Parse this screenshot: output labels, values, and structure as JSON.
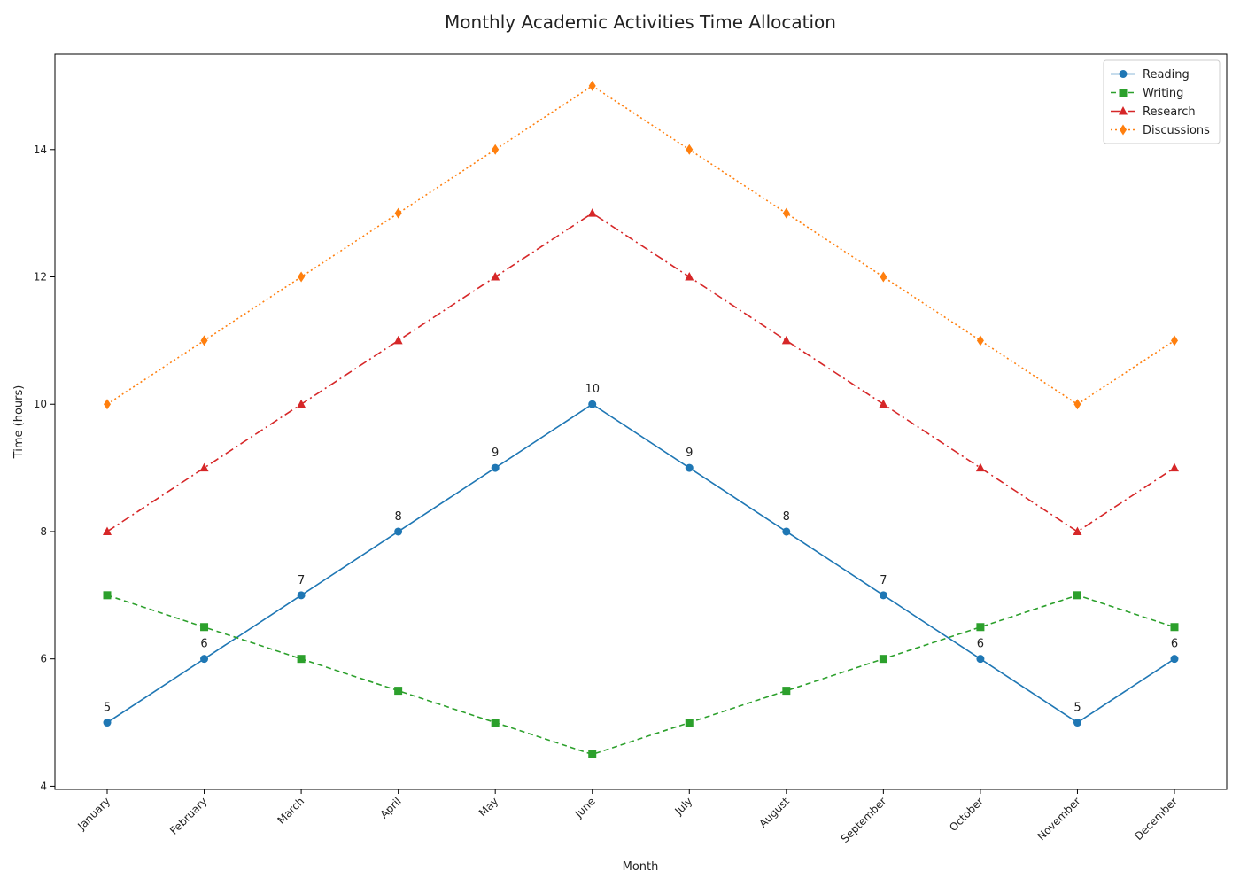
{
  "chart_data": {
    "type": "line",
    "title": "Monthly Academic Activities Time Allocation",
    "xlabel": "Month",
    "ylabel": "Time (hours)",
    "categories": [
      "January",
      "February",
      "March",
      "April",
      "May",
      "June",
      "July",
      "August",
      "September",
      "October",
      "November",
      "December"
    ],
    "ylim": [
      3.95,
      15.5
    ],
    "yticks": [
      4,
      6,
      8,
      10,
      12,
      14
    ],
    "grid": false,
    "legend_position": "top-right",
    "series": [
      {
        "name": "Reading",
        "values": [
          5,
          6,
          7,
          8,
          9,
          10,
          9,
          8,
          7,
          6,
          5,
          6
        ],
        "color": "#1f77b4",
        "marker": "circle",
        "line_style": "solid",
        "data_labels": true
      },
      {
        "name": "Writing",
        "values": [
          7,
          6.5,
          6,
          5.5,
          5,
          4.5,
          5,
          5.5,
          6,
          6.5,
          7,
          6.5
        ],
        "color": "#2ca02c",
        "marker": "square",
        "line_style": "dashed",
        "data_labels": false
      },
      {
        "name": "Research",
        "values": [
          8,
          9,
          10,
          11,
          12,
          13,
          12,
          11,
          10,
          9,
          8,
          9
        ],
        "color": "#d62728",
        "marker": "triangle",
        "line_style": "dashdot",
        "data_labels": false
      },
      {
        "name": "Discussions",
        "values": [
          10,
          11,
          12,
          13,
          14,
          15,
          14,
          13,
          12,
          11,
          10,
          11
        ],
        "color": "#ff7f0e",
        "marker": "diamond",
        "line_style": "dotted",
        "data_labels": false
      }
    ]
  }
}
